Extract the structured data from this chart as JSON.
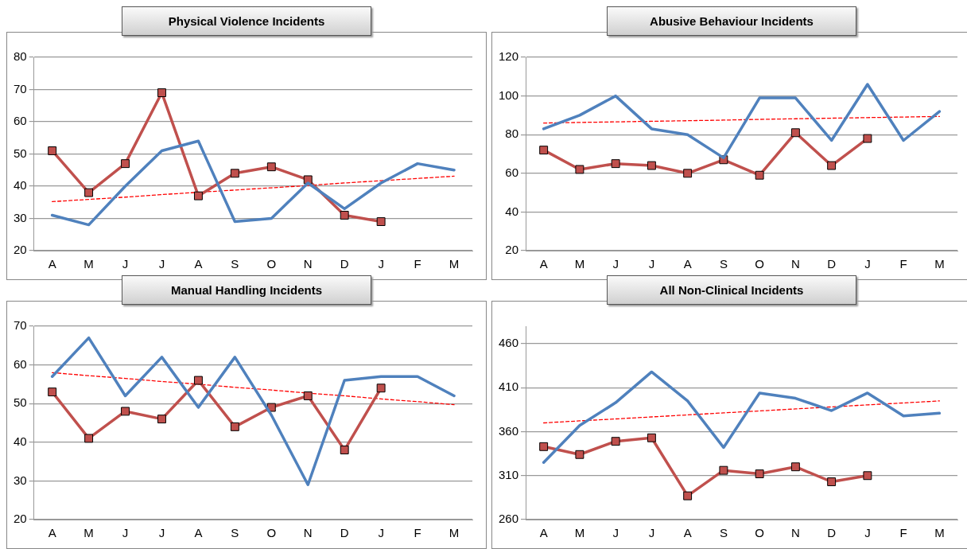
{
  "chart_data": [
    {
      "type": "line",
      "title": "Physical Violence Incidents",
      "categories": [
        "A",
        "M",
        "J",
        "J",
        "A",
        "S",
        "O",
        "N",
        "D",
        "J",
        "F",
        "M"
      ],
      "ylim": [
        20,
        80
      ],
      "yticks": [
        20,
        30,
        40,
        50,
        60,
        70,
        80
      ],
      "grid": "y",
      "legend": false,
      "series": [
        {
          "color": "#4f81bd",
          "marker": "none",
          "values": [
            31,
            28,
            40,
            51,
            54,
            29,
            30,
            41,
            33,
            41,
            47,
            45
          ]
        },
        {
          "color": "#c0504d",
          "marker": "square",
          "values": [
            51,
            38,
            47,
            69,
            37,
            44,
            46,
            42,
            31,
            29,
            null,
            null
          ]
        },
        {
          "color": "#ff0000",
          "marker": "none",
          "line_style": "dashed",
          "values": [
            35.2,
            35.9,
            36.6,
            37.4,
            38.1,
            38.8,
            39.5,
            40.2,
            41.0,
            41.7,
            42.4,
            43.1
          ]
        }
      ]
    },
    {
      "type": "line",
      "title": "Abusive Behaviour Incidents",
      "categories": [
        "A",
        "M",
        "J",
        "J",
        "A",
        "S",
        "O",
        "N",
        "D",
        "J",
        "F",
        "M"
      ],
      "ylim": [
        20,
        120
      ],
      "yticks": [
        20,
        40,
        60,
        80,
        100,
        120
      ],
      "grid": "y",
      "legend": false,
      "series": [
        {
          "color": "#4f81bd",
          "marker": "none",
          "values": [
            83,
            90,
            100,
            83,
            80,
            68,
            99,
            99,
            77,
            106,
            77,
            92
          ]
        },
        {
          "color": "#c0504d",
          "marker": "square",
          "values": [
            72,
            62,
            65,
            64,
            60,
            67,
            59,
            81,
            64,
            78,
            null,
            null
          ]
        },
        {
          "color": "#ff0000",
          "marker": "none",
          "line_style": "dashed",
          "values": [
            86.0,
            86.3,
            86.6,
            86.9,
            87.2,
            87.5,
            87.9,
            88.2,
            88.5,
            88.8,
            89.1,
            89.4
          ]
        }
      ]
    },
    {
      "type": "line",
      "title": "Manual Handling Incidents",
      "categories": [
        "A",
        "M",
        "J",
        "J",
        "A",
        "S",
        "O",
        "N",
        "D",
        "J",
        "F",
        "M"
      ],
      "ylim": [
        20,
        70
      ],
      "yticks": [
        20,
        30,
        40,
        50,
        60,
        70
      ],
      "grid": "y",
      "legend": false,
      "series": [
        {
          "color": "#4f81bd",
          "marker": "none",
          "values": [
            57,
            67,
            52,
            62,
            49,
            62,
            47,
            29,
            56,
            57,
            57,
            52
          ]
        },
        {
          "color": "#c0504d",
          "marker": "square",
          "values": [
            53,
            41,
            48,
            46,
            56,
            44,
            49,
            52,
            38,
            54,
            null,
            null
          ]
        },
        {
          "color": "#ff0000",
          "marker": "none",
          "line_style": "dashed",
          "values": [
            58.0,
            57.2,
            56.5,
            55.7,
            55.0,
            54.2,
            53.5,
            52.7,
            52.0,
            51.2,
            50.5,
            49.7
          ]
        }
      ]
    },
    {
      "type": "line",
      "title": "All Non-Clinical Incidents",
      "categories": [
        "A",
        "M",
        "J",
        "J",
        "A",
        "S",
        "O",
        "N",
        "D",
        "J",
        "F",
        "M"
      ],
      "ylim": [
        260,
        480
      ],
      "yticks": [
        260,
        310,
        360,
        410,
        460
      ],
      "grid": "y",
      "legend": false,
      "series": [
        {
          "color": "#4f81bd",
          "marker": "none",
          "values": [
            325,
            367,
            393,
            428,
            395,
            342,
            404,
            398,
            384,
            404,
            378,
            381
          ]
        },
        {
          "color": "#c0504d",
          "marker": "square",
          "values": [
            343,
            334,
            349,
            353,
            287,
            316,
            312,
            320,
            303,
            310,
            null,
            null
          ]
        },
        {
          "color": "#ff0000",
          "marker": "none",
          "line_style": "dashed",
          "values": [
            370,
            372.3,
            374.5,
            376.8,
            379.1,
            381.4,
            383.6,
            385.9,
            388.2,
            390.5,
            392.7,
            395
          ]
        }
      ]
    }
  ]
}
